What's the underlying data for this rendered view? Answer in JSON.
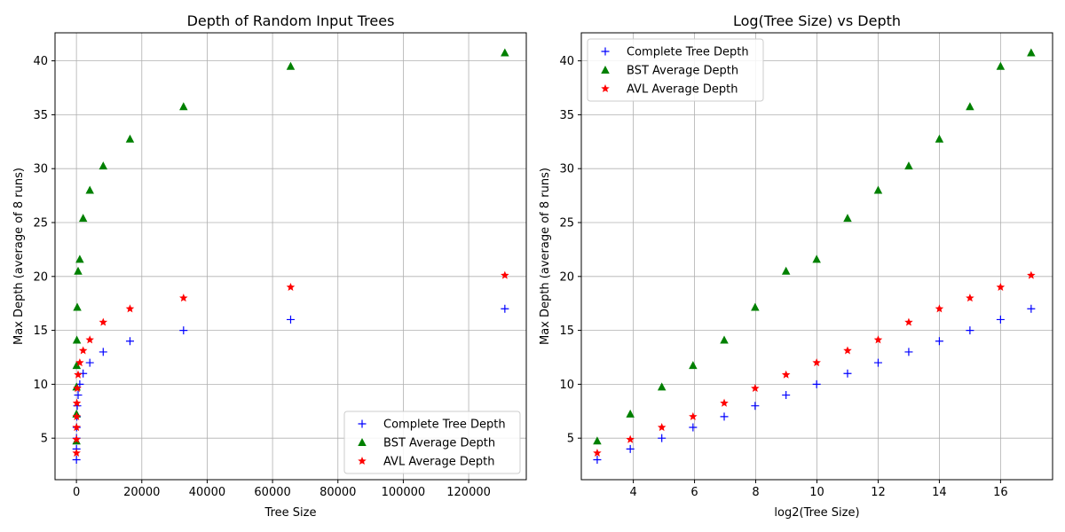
{
  "chart_data": [
    {
      "type": "scatter",
      "title": "Depth of Random Input Trees",
      "xlabel": "Tree Size",
      "ylabel": "Max Depth (average of 8 runs)",
      "xlim": [
        -6550,
        137630
      ],
      "ylim": [
        1.15,
        42.6
      ],
      "xticks": [
        0,
        20000,
        40000,
        60000,
        80000,
        100000,
        120000
      ],
      "xtick_labels": [
        "0",
        "20000",
        "40000",
        "60000",
        "80000",
        "100000",
        "120000"
      ],
      "yticks": [
        5,
        10,
        15,
        20,
        25,
        30,
        35,
        40
      ],
      "grid": true,
      "legend_position": "lower-right",
      "x": [
        8,
        16,
        32,
        64,
        128,
        256,
        512,
        1024,
        2048,
        4096,
        8192,
        16384,
        32768,
        65536,
        131072
      ],
      "series": [
        {
          "name": "Complete Tree Depth",
          "marker": "plus",
          "color": "#0000ff",
          "values": [
            3,
            4,
            5,
            6,
            7,
            8,
            9,
            10,
            11,
            12,
            13,
            14,
            15,
            16,
            17
          ]
        },
        {
          "name": "BST Average Depth",
          "marker": "triangle",
          "color": "#008000",
          "values": [
            4.75,
            7.25,
            9.75,
            11.75,
            14.1,
            17.15,
            20.5,
            21.6,
            25.4,
            28,
            30.25,
            32.75,
            35.75,
            39.5,
            40.75
          ]
        },
        {
          "name": "AVL Average Depth",
          "marker": "star",
          "color": "#ff0000",
          "values": [
            3.62,
            4.88,
            6,
            7,
            8.25,
            9.62,
            10.88,
            12,
            13.12,
            14.12,
            15.75,
            17,
            18,
            19,
            20.1
          ]
        }
      ]
    },
    {
      "type": "scatter",
      "title": "Log(Tree Size) vs Depth",
      "xlabel": "log2(Tree Size)",
      "ylabel": "Max Depth (average of 8 runs)",
      "xlim": [
        2.3,
        17.7
      ],
      "ylim": [
        1.15,
        42.6
      ],
      "xticks": [
        4,
        6,
        8,
        10,
        12,
        14,
        16
      ],
      "xtick_labels": [
        "4",
        "6",
        "8",
        "10",
        "12",
        "14",
        "16"
      ],
      "yticks": [
        5,
        10,
        15,
        20,
        25,
        30,
        35,
        40
      ],
      "grid": true,
      "legend_position": "upper-left",
      "x": [
        2.82,
        3.9,
        4.93,
        5.95,
        6.97,
        7.98,
        8.99,
        9.99,
        11,
        12,
        13,
        14,
        15,
        16,
        17
      ],
      "series": [
        {
          "name": "Complete Tree Depth",
          "marker": "plus",
          "color": "#0000ff",
          "values": [
            3,
            4,
            5,
            6,
            7,
            8,
            9,
            10,
            11,
            12,
            13,
            14,
            15,
            16,
            17
          ]
        },
        {
          "name": "BST Average Depth",
          "marker": "triangle",
          "color": "#008000",
          "values": [
            4.75,
            7.25,
            9.75,
            11.75,
            14.1,
            17.15,
            20.5,
            21.6,
            25.4,
            28,
            30.25,
            32.75,
            35.75,
            39.5,
            40.75
          ]
        },
        {
          "name": "AVL Average Depth",
          "marker": "star",
          "color": "#ff0000",
          "values": [
            3.62,
            4.88,
            6,
            7,
            8.25,
            9.62,
            10.88,
            12,
            13.12,
            14.12,
            15.75,
            17,
            18,
            19,
            20.1
          ]
        }
      ]
    }
  ]
}
